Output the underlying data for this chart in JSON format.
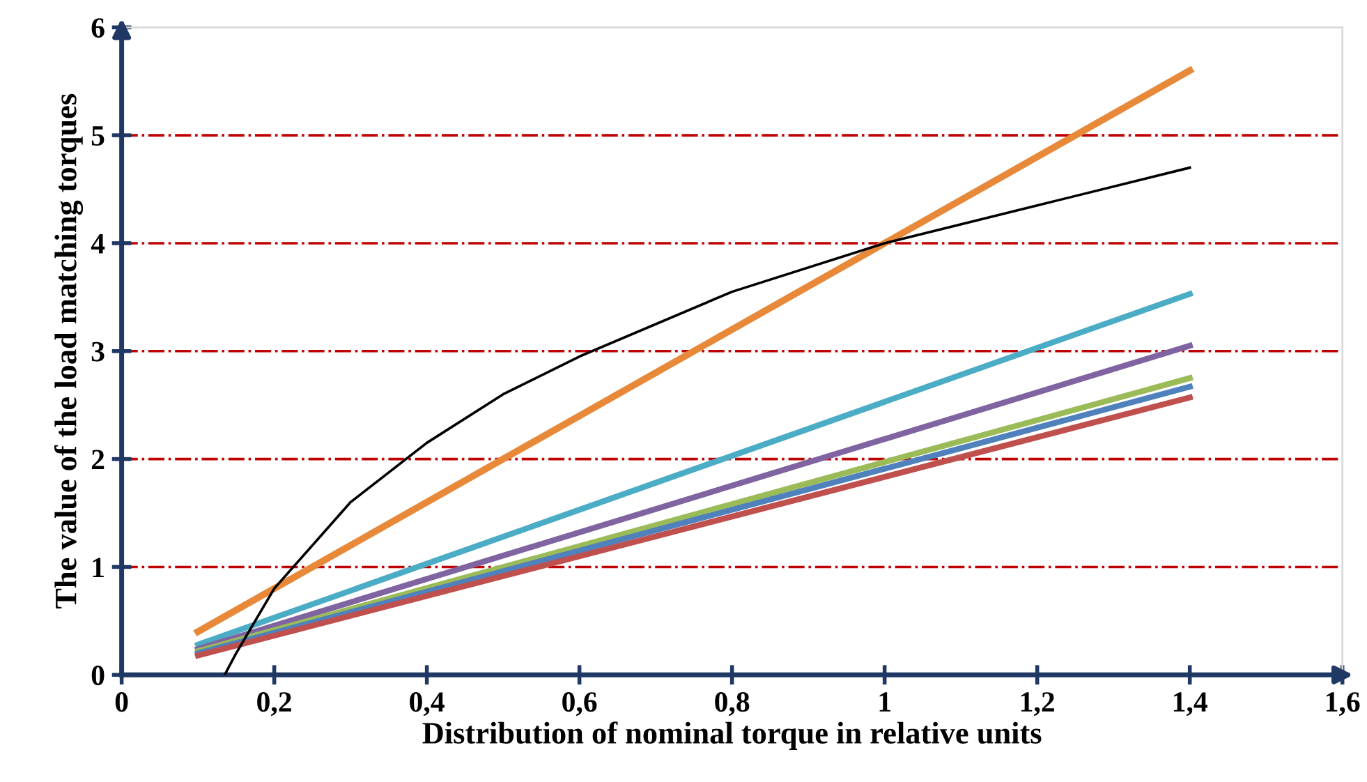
{
  "chart_data": {
    "type": "line",
    "xlabel": "Distribution of nominal torque in relative units",
    "ylabel": "The value of the load matching torques",
    "xlim": [
      0,
      1.6
    ],
    "ylim": [
      0,
      6
    ],
    "xticks": [
      0,
      {
        "value": 0.2,
        "label": "0,2"
      },
      {
        "value": 0.4,
        "label": "0,4"
      },
      {
        "value": 0.6,
        "label": "0,6"
      },
      {
        "value": 0.8,
        "label": "0,8"
      },
      1,
      {
        "value": 1.2,
        "label": "1,2"
      },
      {
        "value": 1.4,
        "label": "1,4"
      },
      {
        "value": 1.6,
        "label": "1,6"
      }
    ],
    "yticks": [
      0,
      1,
      2,
      3,
      4,
      5,
      6
    ],
    "grid": false,
    "legend": false,
    "marker": "none",
    "line_style": "solid",
    "ref_lines": [
      {
        "axis": "y",
        "value": 1,
        "color": "#c00000",
        "line_style": "dashdot"
      },
      {
        "axis": "y",
        "value": 2,
        "color": "#c00000",
        "line_style": "dashdot"
      },
      {
        "axis": "y",
        "value": 3,
        "color": "#c00000",
        "line_style": "dashdot"
      },
      {
        "axis": "y",
        "value": 4,
        "color": "#c00000",
        "line_style": "dashdot"
      },
      {
        "axis": "y",
        "value": 5,
        "color": "#c00000",
        "line_style": "dashdot"
      }
    ],
    "series": [
      {
        "color": "#4bacc6",
        "x": [
          0.1,
          1.4
        ],
        "values": [
          0.28,
          3.53
        ]
      },
      {
        "color": "#8064a2",
        "x": [
          0.1,
          1.4
        ],
        "values": [
          0.24,
          3.05
        ]
      },
      {
        "color": "#9bbb59",
        "x": [
          0.1,
          1.4
        ],
        "values": [
          0.22,
          2.75
        ]
      },
      {
        "color": "#4f81bd",
        "x": [
          0.1,
          1.4
        ],
        "values": [
          0.2,
          2.67
        ]
      },
      {
        "color": "#c0504d",
        "x": [
          0.1,
          1.4
        ],
        "values": [
          0.18,
          2.57
        ]
      },
      {
        "color": "#e8893a",
        "x": [
          0.1,
          1.4
        ],
        "values": [
          0.4,
          5.6
        ]
      },
      {
        "color": "#000000",
        "x": [
          0.135,
          0.15,
          0.2,
          0.3,
          0.4,
          0.5,
          0.6,
          0.8,
          1.0,
          1.2,
          1.4
        ],
        "values": [
          0,
          0.2,
          0.8,
          1.6,
          2.15,
          2.6,
          2.95,
          3.55,
          4.0,
          4.35,
          4.7
        ]
      }
    ]
  }
}
